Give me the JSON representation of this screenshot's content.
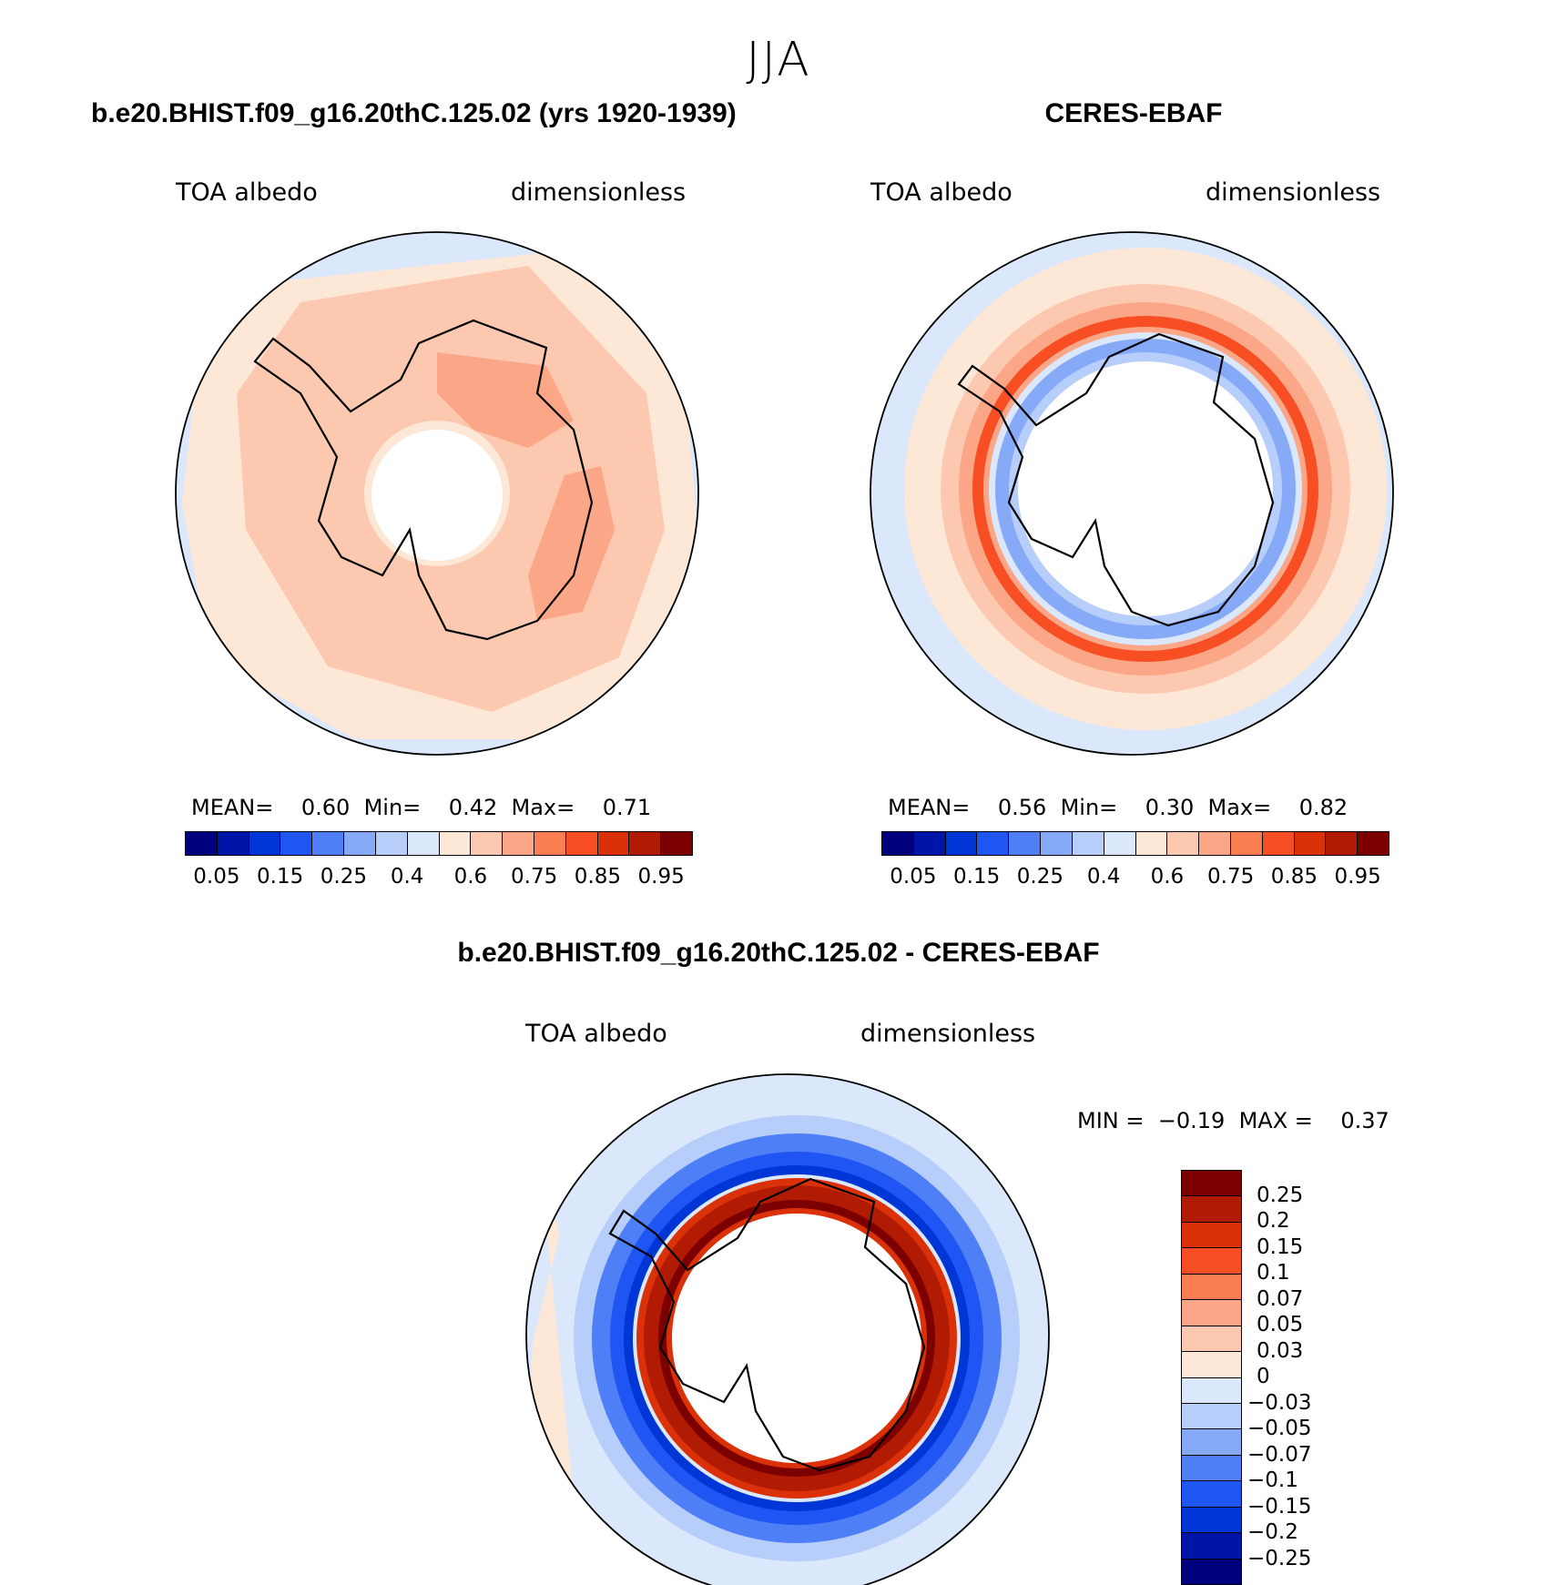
{
  "figure": {
    "season": "JJA"
  },
  "panels": [
    {
      "title": "b.e20.BHIST.f09_g16.20thC.125.02 (yrs 1920-1939)",
      "left_label": "TOA albedo",
      "right_label": "dimensionless",
      "stats": {
        "mean_label": "MEAN=",
        "mean": "0.60",
        "min_label": "Min=",
        "min": "0.42",
        "max_label": "Max=",
        "max": "0.71"
      }
    },
    {
      "title": "CERES-EBAF",
      "left_label": "TOA albedo",
      "right_label": "dimensionless",
      "stats": {
        "mean_label": "MEAN=",
        "mean": "0.56",
        "min_label": "Min=",
        "min": "0.30",
        "max_label": "Max=",
        "max": "0.82"
      }
    },
    {
      "title": "b.e20.BHIST.f09_g16.20thC.125.02 - CERES-EBAF",
      "left_label": "TOA albedo",
      "right_label": "dimensionless",
      "stats": {
        "min_label": "MIN =",
        "min": "−0.19",
        "max_label": "MAX =",
        "max": "0.37"
      }
    }
  ],
  "colorbar_abs": {
    "labels": [
      "0.05",
      "0.15",
      "0.25",
      "0.4",
      "0.6",
      "0.75",
      "0.85",
      "0.95"
    ],
    "colors": [
      "#00007f",
      "#0015a8",
      "#0036d6",
      "#1f55f2",
      "#4f7ff7",
      "#86a9f8",
      "#b7cdfa",
      "#dbe8fb",
      "#fde8d8",
      "#fcc9b0",
      "#fba686",
      "#fb7d52",
      "#f74e24",
      "#db3109",
      "#b11b04",
      "#7d0000"
    ]
  },
  "colorbar_diff": {
    "labels": [
      "0.25",
      "0.2",
      "0.15",
      "0.1",
      "0.07",
      "0.05",
      "0.03",
      "0",
      "−0.03",
      "−0.05",
      "−0.07",
      "−0.1",
      "−0.15",
      "−0.2",
      "−0.25"
    ],
    "colors": [
      "#7d0000",
      "#b11b04",
      "#db3109",
      "#f74e24",
      "#fb7d52",
      "#fba686",
      "#fcc9b0",
      "#fde8d8",
      "#dbe8fb",
      "#b7cdfa",
      "#86a9f8",
      "#4f7ff7",
      "#1f55f2",
      "#0036d6",
      "#0015a8",
      "#00007f"
    ]
  }
}
